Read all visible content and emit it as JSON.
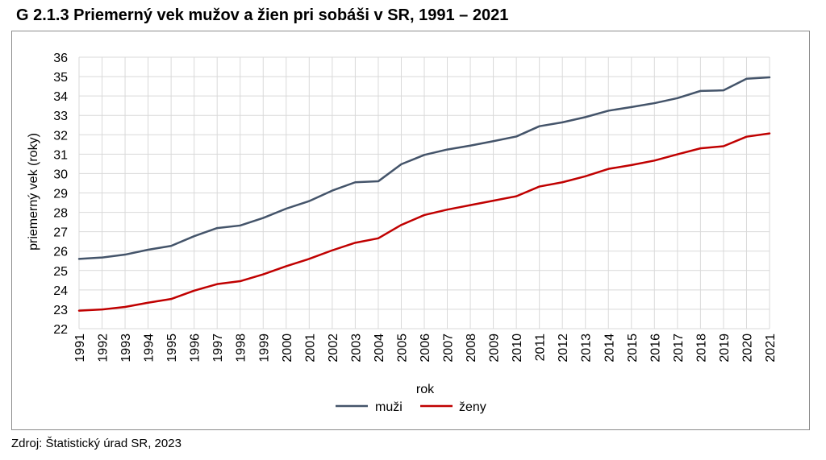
{
  "header": {
    "title": "G 2.1.3 Priemerný vek mužov a žien pri sobáši v SR, 1991 – 2021"
  },
  "footer": {
    "source": "Zdroj: Štatistický úrad SR, 2023"
  },
  "chart_data": {
    "type": "line",
    "xlabel": "rok",
    "ylabel": "priemerný vek (roky)",
    "ylim": [
      22,
      36
    ],
    "y_ticks": [
      22,
      23,
      24,
      25,
      26,
      27,
      28,
      29,
      30,
      31,
      32,
      33,
      34,
      35,
      36
    ],
    "grid": true,
    "legend_position": "bottom",
    "categories": [
      "1991",
      "1992",
      "1993",
      "1994",
      "1995",
      "1996",
      "1997",
      "1998",
      "1999",
      "2000",
      "2001",
      "2002",
      "2003",
      "2004",
      "2005",
      "2006",
      "2007",
      "2008",
      "2009",
      "2010",
      "2011",
      "2012",
      "2013",
      "2014",
      "2015",
      "2016",
      "2017",
      "2018",
      "2019",
      "2020",
      "2021"
    ],
    "series": [
      {
        "name": "muži",
        "color": "#44546a",
        "values": [
          25.6,
          25.67,
          25.82,
          26.07,
          26.27,
          26.77,
          27.19,
          27.32,
          27.71,
          28.19,
          28.58,
          29.12,
          29.55,
          29.6,
          30.48,
          30.96,
          31.24,
          31.44,
          31.67,
          31.91,
          32.44,
          32.64,
          32.91,
          33.24,
          33.43,
          33.63,
          33.89,
          34.26,
          34.29,
          34.89,
          34.96
        ]
      },
      {
        "name": "ženy",
        "color": "#c00000",
        "values": [
          22.93,
          22.99,
          23.12,
          23.34,
          23.53,
          23.96,
          24.3,
          24.45,
          24.8,
          25.22,
          25.6,
          26.04,
          26.43,
          26.66,
          27.35,
          27.86,
          28.14,
          28.37,
          28.6,
          28.83,
          29.33,
          29.55,
          29.86,
          30.24,
          30.44,
          30.67,
          30.99,
          31.3,
          31.41,
          31.9,
          32.07
        ]
      }
    ]
  }
}
